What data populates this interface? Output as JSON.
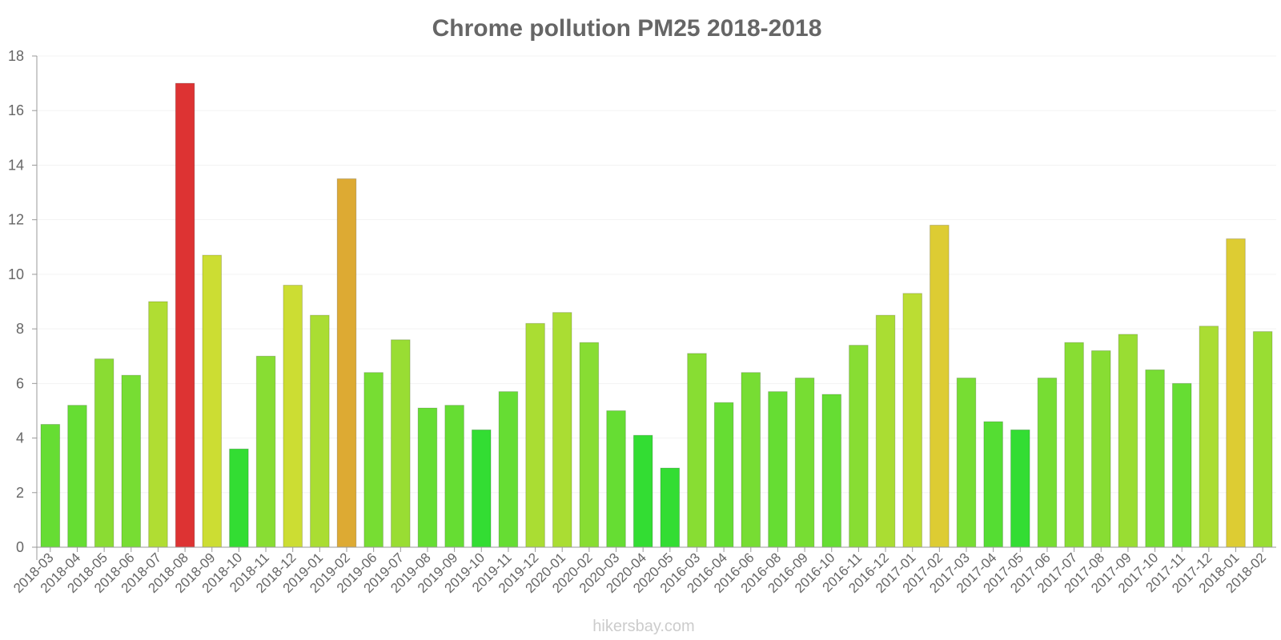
{
  "watermark": "hikersbay.com",
  "chart_data": {
    "type": "bar",
    "title": "Chrome pollution PM25 2018-2018",
    "xlabel": "",
    "ylabel": "",
    "ylim": [
      0,
      18
    ],
    "yticks": [
      0,
      2,
      4,
      6,
      8,
      10,
      12,
      14,
      16,
      18
    ],
    "grid": true,
    "legend": "none",
    "categories": [
      "2018-03",
      "2018-04",
      "2018-05",
      "2018-06",
      "2018-07",
      "2018-08",
      "2018-09",
      "2018-10",
      "2018-11",
      "2018-12",
      "2019-01",
      "2019-02",
      "2019-06",
      "2019-07",
      "2019-08",
      "2019-09",
      "2019-10",
      "2019-11",
      "2019-12",
      "2020-01",
      "2020-02",
      "2020-03",
      "2020-04",
      "2020-05",
      "2016-03",
      "2016-04",
      "2016-06",
      "2016-08",
      "2016-09",
      "2016-10",
      "2016-11",
      "2016-12",
      "2017-01",
      "2017-02",
      "2017-03",
      "2017-04",
      "2017-05",
      "2017-06",
      "2017-07",
      "2017-08",
      "2017-09",
      "2017-10",
      "2017-11",
      "2017-12",
      "2018-01",
      "2018-02"
    ],
    "values": [
      4.5,
      5.2,
      6.9,
      6.3,
      9.0,
      17.0,
      10.7,
      3.6,
      7.0,
      9.6,
      8.5,
      13.5,
      6.4,
      7.6,
      5.1,
      5.2,
      4.3,
      5.7,
      8.2,
      8.6,
      7.5,
      5.0,
      4.1,
      2.9,
      7.1,
      5.3,
      6.4,
      5.7,
      6.2,
      5.6,
      7.4,
      8.5,
      9.3,
      11.8,
      6.2,
      4.6,
      4.3,
      6.2,
      7.5,
      7.2,
      7.8,
      6.5,
      6.0,
      8.1,
      11.3,
      7.9
    ],
    "colors": [
      "#66dd33",
      "#66dd33",
      "#8adc33",
      "#77dd33",
      "#b0dd33",
      "#dd3333",
      "#ccdd33",
      "#33dd33",
      "#88dd33",
      "#ccdd33",
      "#aadd33",
      "#ddaa33",
      "#77dd33",
      "#99dd33",
      "#66dd33",
      "#66dd33",
      "#33dd33",
      "#66dd33",
      "#aadd33",
      "#aadd33",
      "#88dd33",
      "#66dd33",
      "#33dd33",
      "#33dd33",
      "#88dd33",
      "#66dd33",
      "#77dd33",
      "#66dd33",
      "#77dd33",
      "#66dd33",
      "#88dd33",
      "#aadd33",
      "#bbdd33",
      "#ddcc33",
      "#77dd33",
      "#55dd33",
      "#33dd33",
      "#77dd33",
      "#88dd33",
      "#88dd33",
      "#99dd33",
      "#77dd33",
      "#66dd33",
      "#aadd33",
      "#ddcc33",
      "#99dd33"
    ]
  }
}
